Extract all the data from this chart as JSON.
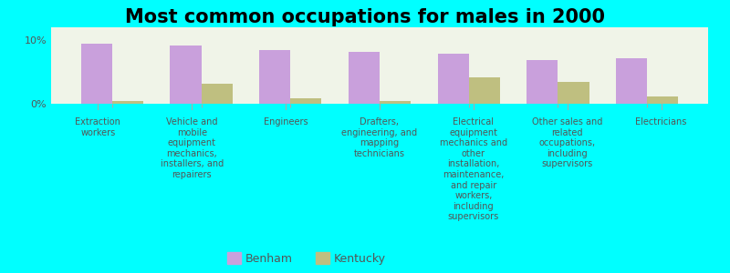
{
  "title": "Most common occupations for males in 2000",
  "background_color": "#00FFFF",
  "plot_background_color": "#F0F4E8",
  "categories": [
    "Extraction\nworkers",
    "Vehicle and\nmobile\nequipment\nmechanics,\ninstallers, and\nrepairers",
    "Engineers",
    "Drafters,\nengineering, and\nmapping\ntechnicians",
    "Electrical\nequipment\nmechanics and\nother\ninstallation,\nmaintenance,\nand repair\nworkers,\nincluding\nsupervisors",
    "Other sales and\nrelated\noccupations,\nincluding\nsupervisors",
    "Electricians"
  ],
  "benham_values": [
    9.5,
    9.2,
    8.5,
    8.2,
    7.8,
    6.8,
    7.2
  ],
  "kentucky_values": [
    0.5,
    3.2,
    0.8,
    0.5,
    4.2,
    3.5,
    1.2
  ],
  "benham_color": "#C9A0DC",
  "kentucky_color": "#BFBF80",
  "ylim": [
    0,
    12
  ],
  "yticks": [
    0,
    10
  ],
  "ytick_labels": [
    "0%",
    "10%"
  ],
  "bar_width": 0.35,
  "legend_benham": "Benham",
  "legend_kentucky": "Kentucky",
  "title_fontsize": 15,
  "label_fontsize": 7,
  "figsize": [
    8.0,
    3.0
  ],
  "dpi": 100
}
